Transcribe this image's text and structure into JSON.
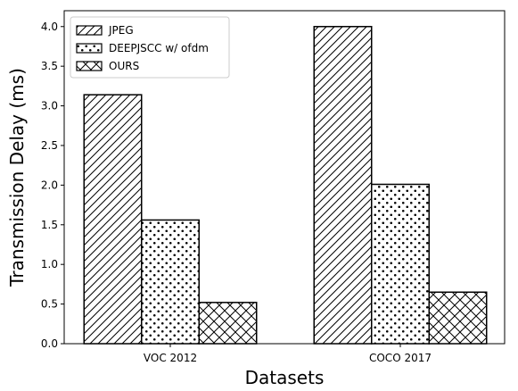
{
  "chart_data": {
    "type": "bar",
    "categories": [
      "VOC 2012",
      "COCO 2017"
    ],
    "series": [
      {
        "name": "JPEG",
        "values": [
          3.14,
          4.0
        ],
        "pattern": "diagonal-hatch"
      },
      {
        "name": "DEEPJSCC w/ ofdm",
        "values": [
          1.56,
          2.01
        ],
        "pattern": "dots"
      },
      {
        "name": "OURS",
        "values": [
          0.52,
          0.65
        ],
        "pattern": "cross-hatch"
      }
    ],
    "xlabel": "Datasets",
    "ylabel": "Transmission Delay (ms)",
    "ylim": [
      0,
      4.2
    ],
    "yticks": [
      "0.0",
      "0.5",
      "1.0",
      "1.5",
      "2.0",
      "2.5",
      "3.0",
      "3.5",
      "4.0"
    ],
    "legend_position": "top-left",
    "grid": false,
    "colors": {
      "bar_fill": "#ffffff",
      "bar_edge": "#000000"
    }
  }
}
